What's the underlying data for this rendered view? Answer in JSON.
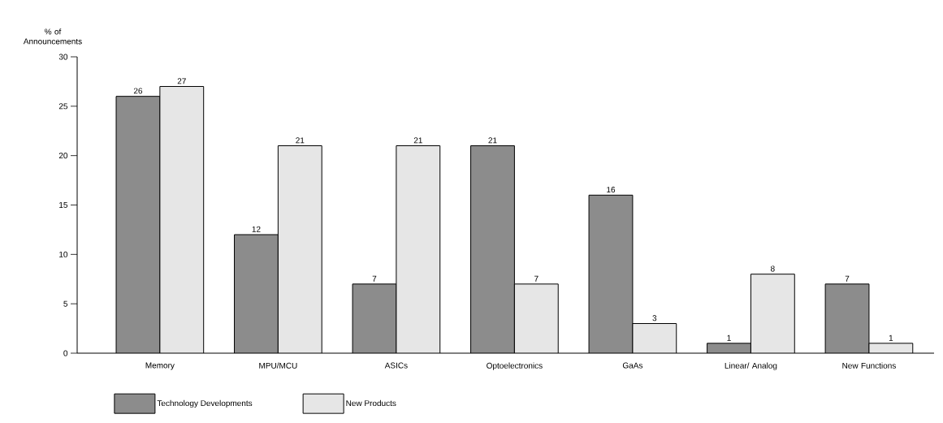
{
  "chart_data": {
    "type": "bar",
    "ylabel": "% of Announcements",
    "categories": [
      "Memory",
      "MPU/MCU",
      "ASICs",
      "Optoelectronics",
      "GaAs",
      "Linear/ Analog",
      "New Functions"
    ],
    "series": [
      {
        "name": "Technology Developments",
        "color": "#8c8c8c",
        "values": [
          26,
          12,
          7,
          21,
          16,
          1,
          7
        ]
      },
      {
        "name": "New Products",
        "color": "#e6e6e6",
        "values": [
          27,
          21,
          21,
          7,
          3,
          8,
          1
        ]
      }
    ],
    "ylim": [
      0,
      30
    ],
    "yticks": [
      0,
      5,
      10,
      15,
      20,
      25,
      30
    ],
    "data_labels": true,
    "grid": false,
    "legend": "bottom left"
  }
}
